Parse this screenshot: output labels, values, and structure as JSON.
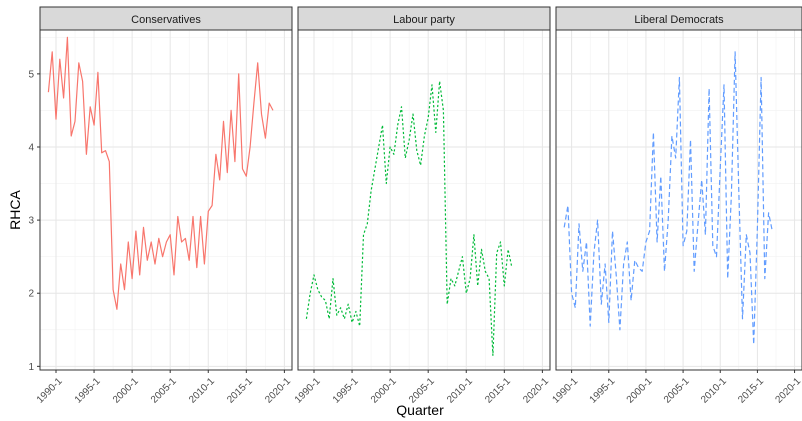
{
  "chart_data": {
    "type": "line",
    "facets": [
      "Conservatives",
      "Labour party",
      "Liberal Democrats"
    ],
    "xlabel": "Quarter",
    "ylabel": "RHCA",
    "x_ticks": [
      "1990-1",
      "1995-1",
      "2000-1",
      "2005-1",
      "2010-1",
      "2015-1",
      "2020-1"
    ],
    "x_tick_years": [
      1990,
      1995,
      2000,
      2005,
      2010,
      2015,
      2020
    ],
    "y_ticks": [
      1,
      2,
      3,
      4,
      5
    ],
    "xlim": [
      1987.9,
      2021.0
    ],
    "ylim": [
      0.95,
      5.6
    ],
    "grid": true,
    "legend": "none",
    "x_start": 1989.0,
    "x_step": 0.5,
    "series": [
      {
        "facet": "Conservatives",
        "color": "#F8766D",
        "dash": "solid",
        "values": [
          4.75,
          5.3,
          4.38,
          5.2,
          4.67,
          5.5,
          4.15,
          4.35,
          5.15,
          4.9,
          3.9,
          4.55,
          4.3,
          5.02,
          3.92,
          3.95,
          3.8,
          2.05,
          1.78,
          2.4,
          2.05,
          2.7,
          2.2,
          2.85,
          2.25,
          2.9,
          2.45,
          2.7,
          2.4,
          2.75,
          2.5,
          2.7,
          2.8,
          2.25,
          3.05,
          2.7,
          2.75,
          2.45,
          3.05,
          2.35,
          3.05,
          2.4,
          3.12,
          3.2,
          3.9,
          3.55,
          4.35,
          3.65,
          4.5,
          3.8,
          5.0,
          3.7,
          3.6,
          4.0,
          4.6,
          5.15,
          4.45,
          4.12,
          4.6,
          4.5
        ]
      },
      {
        "facet": "Labour party",
        "color": "#00BA38",
        "dash": "dotted",
        "values": [
          1.65,
          2.0,
          2.25,
          2.05,
          1.95,
          1.9,
          1.65,
          2.2,
          1.7,
          1.8,
          1.65,
          1.85,
          1.6,
          1.75,
          1.55,
          2.8,
          2.95,
          3.4,
          3.7,
          4.0,
          4.3,
          3.5,
          4.0,
          3.9,
          4.3,
          4.55,
          3.85,
          4.1,
          4.45,
          3.95,
          3.75,
          4.15,
          4.4,
          4.85,
          4.2,
          4.9,
          4.5,
          1.85,
          2.2,
          2.1,
          2.3,
          2.5,
          2.0,
          2.2,
          2.8,
          2.1,
          2.6,
          2.3,
          2.2,
          1.15,
          2.55,
          2.7,
          2.1,
          2.6,
          2.35
        ]
      },
      {
        "facet": "Liberal Democrats",
        "color": "#619CFF",
        "dash": "dashed",
        "values": [
          2.9,
          3.2,
          2.0,
          1.8,
          2.95,
          2.3,
          2.7,
          1.55,
          2.55,
          3.0,
          1.85,
          2.4,
          1.6,
          2.85,
          2.25,
          1.5,
          2.4,
          2.7,
          1.9,
          2.45,
          2.35,
          2.3,
          2.7,
          2.85,
          4.2,
          2.7,
          3.6,
          2.3,
          3.0,
          4.15,
          3.85,
          4.95,
          2.65,
          2.85,
          4.1,
          2.3,
          2.95,
          3.55,
          2.8,
          4.8,
          2.65,
          2.5,
          3.7,
          4.85,
          2.2,
          3.35,
          5.3,
          3.4,
          1.65,
          2.8,
          2.55,
          1.3,
          2.9,
          4.95,
          2.2,
          3.1,
          2.85
        ]
      }
    ]
  }
}
